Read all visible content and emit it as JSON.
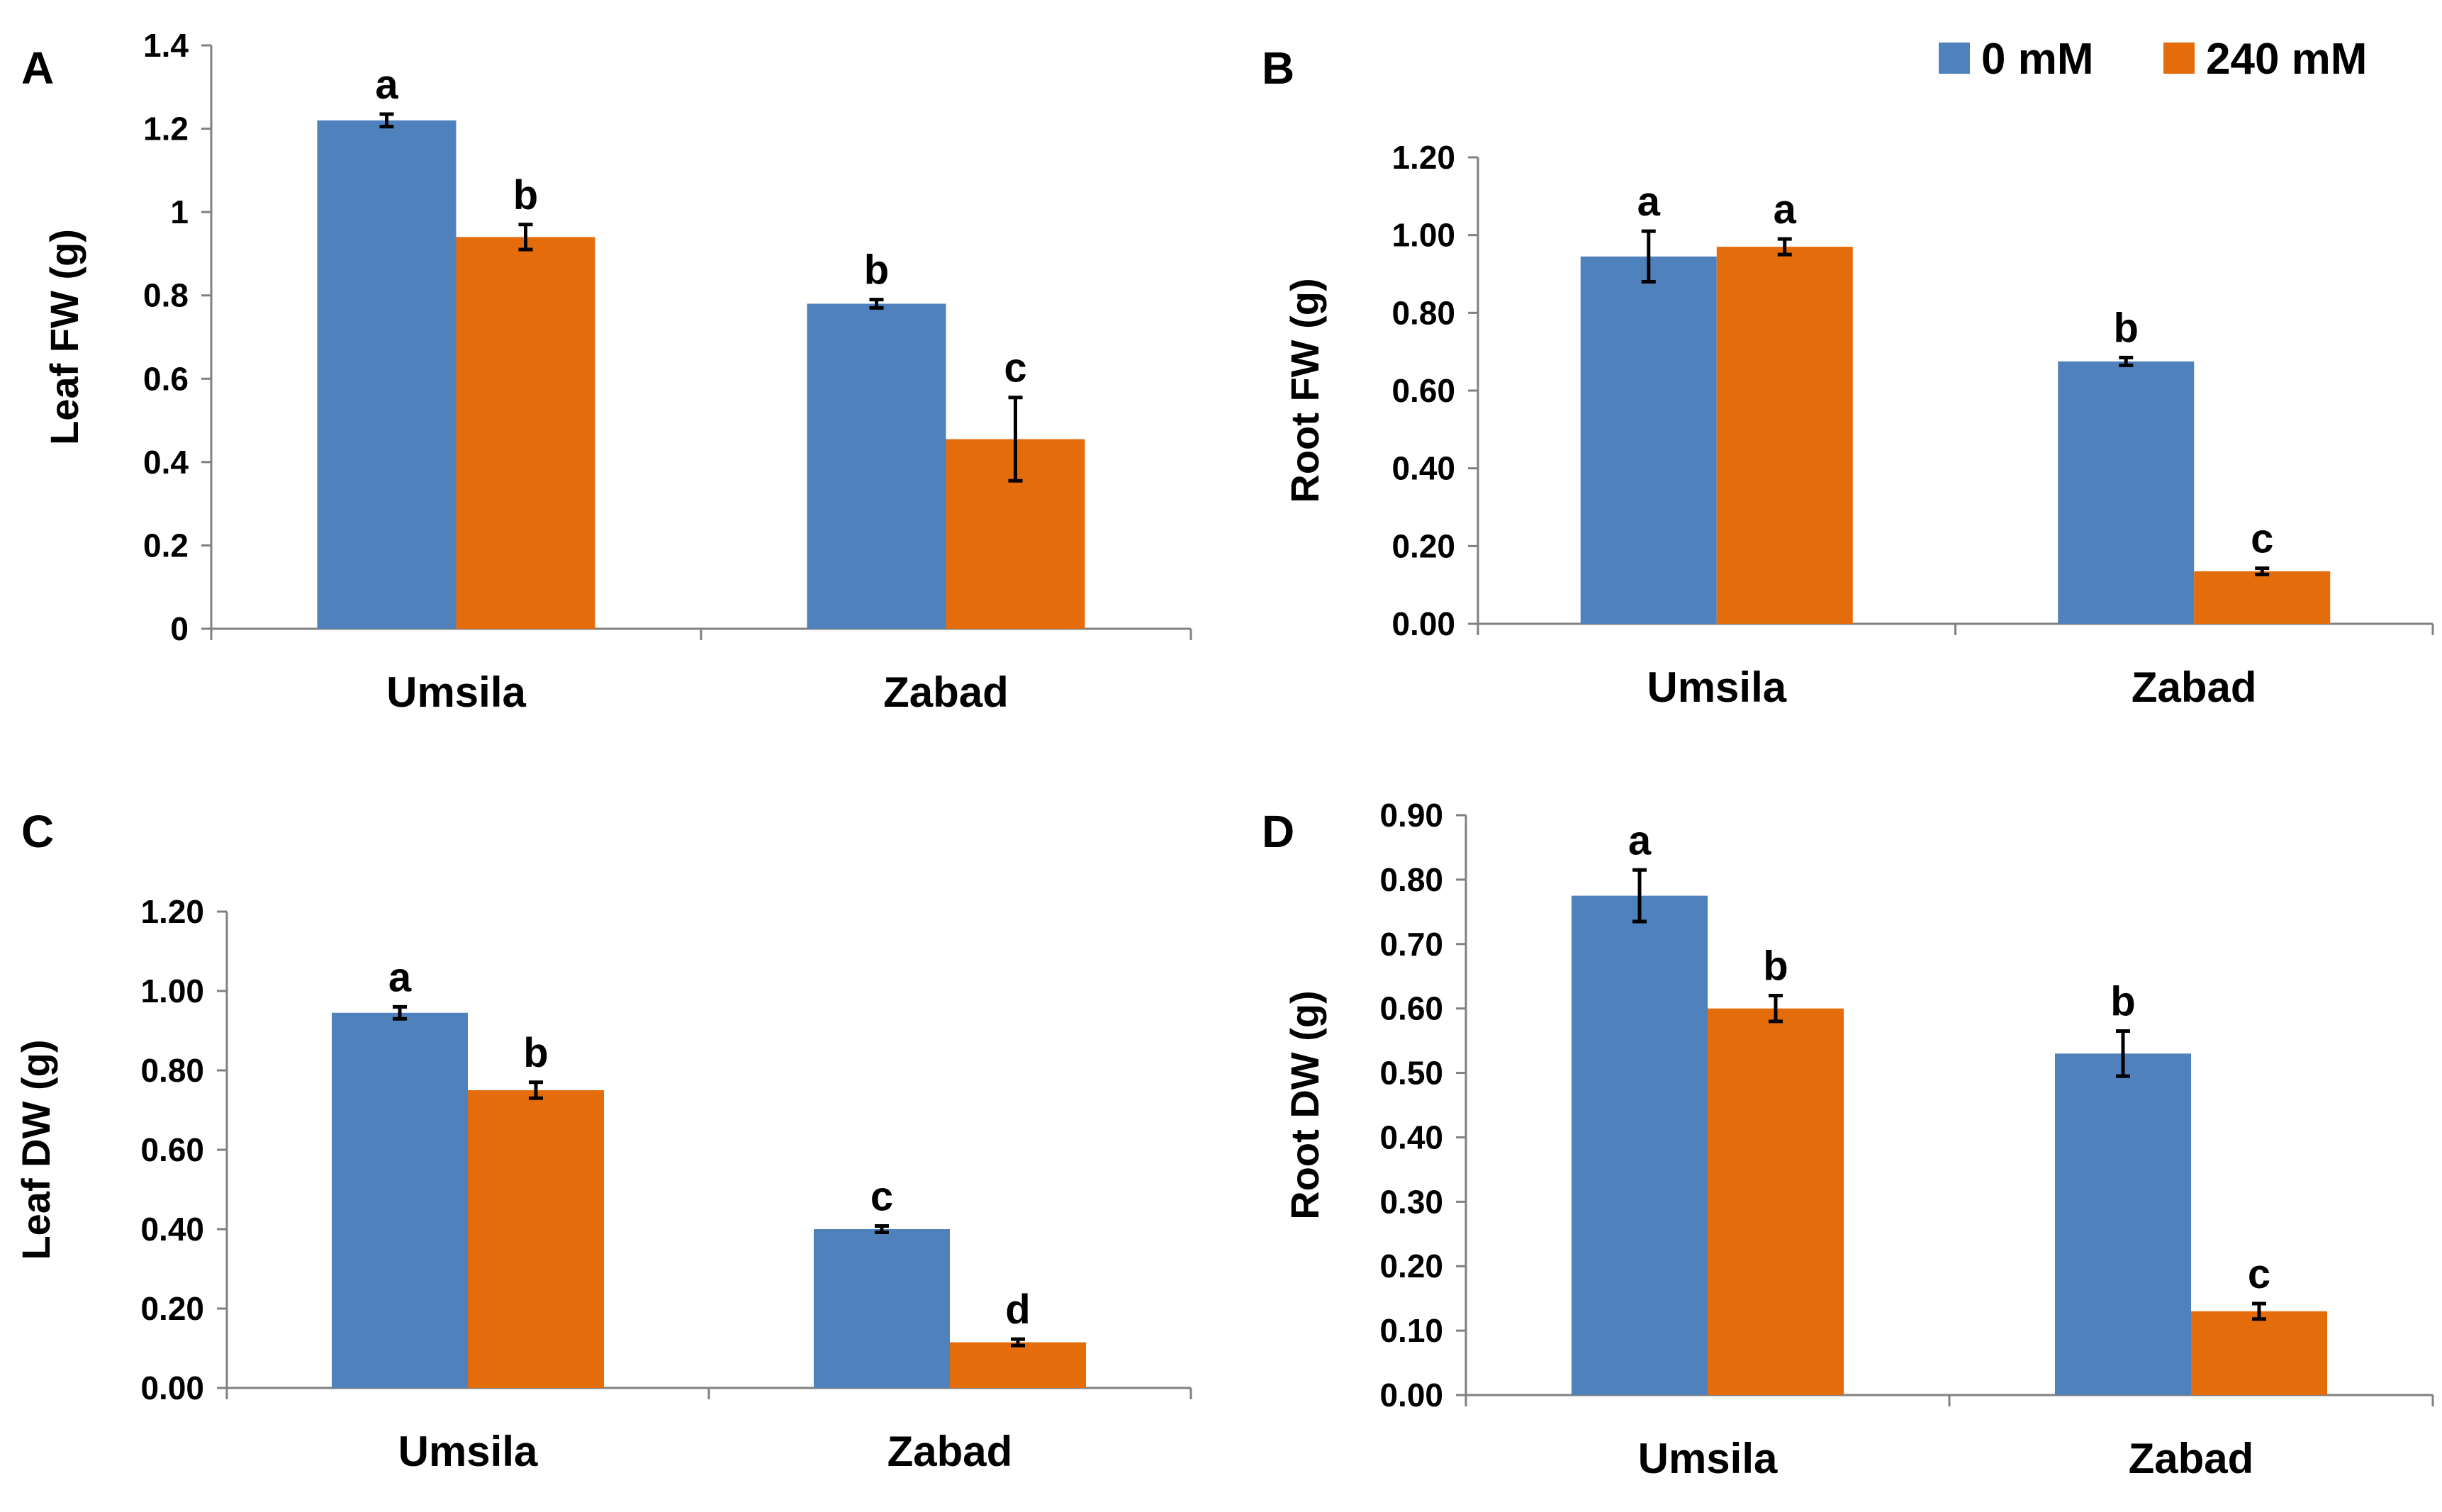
{
  "colors": {
    "control": "#4F81BD",
    "salt": "#E46C0A",
    "axis": "#808080",
    "text": "#000000"
  },
  "legend": {
    "position": "top-right",
    "items": [
      {
        "label": "0 mM",
        "color": "#4F81BD"
      },
      {
        "label": "240 mM",
        "color": "#E46C0A"
      }
    ]
  },
  "chart_data": [
    {
      "panel": "A",
      "type": "bar",
      "ylabel": "Leaf FW (g)",
      "categories": [
        "Umsila",
        "Zabad"
      ],
      "ylim": [
        0,
        1.4
      ],
      "ticks": [
        "0",
        "0.2",
        "0.4",
        "0.6",
        "0.8",
        "1",
        "1.2",
        "1.4"
      ],
      "grid": false,
      "series": [
        {
          "name": "0 mM",
          "values": [
            1.22,
            0.78
          ],
          "errors": [
            0.015,
            0.01
          ],
          "labels": [
            "a",
            "b"
          ]
        },
        {
          "name": "240 mM",
          "values": [
            0.94,
            0.455
          ],
          "errors": [
            0.03,
            0.1
          ],
          "labels": [
            "b",
            "c"
          ]
        }
      ]
    },
    {
      "panel": "B",
      "type": "bar",
      "ylabel": "Root  FW (g)",
      "categories": [
        "Umsila",
        "Zabad"
      ],
      "ylim": [
        0,
        1.2
      ],
      "ticks": [
        "0.00",
        "0.20",
        "0.40",
        "0.60",
        "0.80",
        "1.00",
        "1.20"
      ],
      "grid": false,
      "series": [
        {
          "name": "0 mM",
          "values": [
            0.945,
            0.675
          ],
          "errors": [
            0.065,
            0.01
          ],
          "labels": [
            "a",
            "b"
          ]
        },
        {
          "name": "240 mM",
          "values": [
            0.97,
            0.135
          ],
          "errors": [
            0.02,
            0.008
          ],
          "labels": [
            "a",
            "c"
          ]
        }
      ]
    },
    {
      "panel": "C",
      "type": "bar",
      "ylabel": "Leaf  DW (g)",
      "categories": [
        "Umsila",
        "Zabad"
      ],
      "ylim": [
        0,
        1.2
      ],
      "ticks": [
        "0.00",
        "0.20",
        "0.40",
        "0.60",
        "0.80",
        "1.00",
        "1.20"
      ],
      "grid": false,
      "series": [
        {
          "name": "0 mM",
          "values": [
            0.945,
            0.4
          ],
          "errors": [
            0.015,
            0.008
          ],
          "labels": [
            "a",
            "c"
          ]
        },
        {
          "name": "240 mM",
          "values": [
            0.75,
            0.115
          ],
          "errors": [
            0.02,
            0.008
          ],
          "labels": [
            "b",
            "d"
          ]
        }
      ]
    },
    {
      "panel": "D",
      "type": "bar",
      "ylabel": "Root  DW (g)",
      "categories": [
        "Umsila",
        "Zabad"
      ],
      "ylim": [
        0,
        0.9
      ],
      "ticks": [
        "0.00",
        "0.10",
        "0.20",
        "0.30",
        "0.40",
        "0.50",
        "0.60",
        "0.70",
        "0.80",
        "0.90"
      ],
      "grid": false,
      "series": [
        {
          "name": "0 mM",
          "values": [
            0.775,
            0.53
          ],
          "errors": [
            0.04,
            0.035
          ],
          "labels": [
            "a",
            "b"
          ]
        },
        {
          "name": "240 mM",
          "values": [
            0.6,
            0.13
          ],
          "errors": [
            0.02,
            0.012
          ],
          "labels": [
            "b",
            "c"
          ]
        }
      ]
    }
  ]
}
